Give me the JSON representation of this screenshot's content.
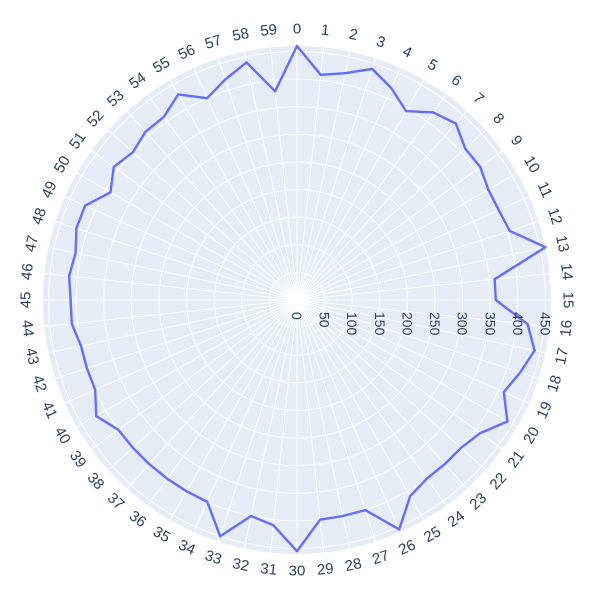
{
  "chart_data": {
    "type": "polar-line",
    "title": "",
    "angular_axis": {
      "categories": [
        "0",
        "1",
        "2",
        "3",
        "4",
        "5",
        "6",
        "7",
        "8",
        "9",
        "10",
        "11",
        "12",
        "13",
        "14",
        "15",
        "16",
        "17",
        "18",
        "19",
        "20",
        "21",
        "22",
        "23",
        "24",
        "25",
        "26",
        "27",
        "28",
        "29",
        "30",
        "31",
        "32",
        "33",
        "34",
        "35",
        "36",
        "37",
        "38",
        "39",
        "40",
        "41",
        "42",
        "43",
        "44",
        "45",
        "46",
        "47",
        "48",
        "49",
        "50",
        "51",
        "52",
        "53",
        "54",
        "55",
        "56",
        "57",
        "58",
        "59"
      ],
      "direction": "clockwise",
      "rotation": "0 at top"
    },
    "radial_axis": {
      "range": [
        0,
        460
      ],
      "tick_values": [
        0,
        50,
        100,
        150,
        200,
        250,
        300,
        350,
        400,
        450
      ],
      "tick_labels": [
        "0",
        "50",
        "100",
        "150",
        "200",
        "250",
        "300",
        "350",
        "400",
        "450"
      ],
      "angle": "pointing right (east)"
    },
    "grid": true,
    "background_color": "#e5ecf6",
    "grid_color": "#ffffff",
    "line_color": "#636efa",
    "series": [
      {
        "values": [
          460,
          410,
          420,
          440,
          420,
          395,
          420,
          430,
          410,
          410,
          400,
          400,
          405,
          460,
          360,
          360,
          420,
          440,
          425,
          410,
          440,
          410,
          400,
          400,
          400,
          410,
          455,
          400,
          400,
          400,
          455,
          410,
          400,
          450,
          400,
          400,
          400,
          400,
          400,
          400,
          420,
          400,
          400,
          400,
          410,
          410,
          415,
          410,
          420,
          420,
          390,
          410,
          400,
          410,
          410,
          430,
          400,
          420,
          440,
          380
        ]
      }
    ]
  }
}
